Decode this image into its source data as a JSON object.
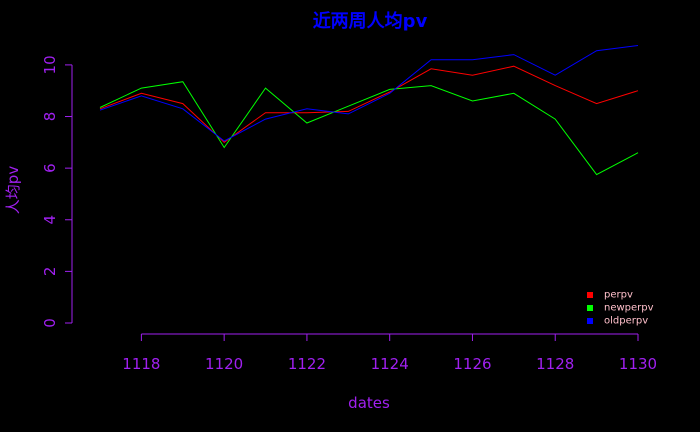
{
  "chart_data": {
    "type": "line",
    "title": "近两周人均pv",
    "xlabel": "dates",
    "ylabel": "人均pv",
    "x": [
      1117,
      1118,
      1119,
      1120,
      1121,
      1122,
      1123,
      1124,
      1125,
      1126,
      1127,
      1128,
      1129,
      1130
    ],
    "x_ticks": [
      1118,
      1120,
      1122,
      1124,
      1126,
      1128,
      1130
    ],
    "y_ticks": [
      0,
      2,
      4,
      6,
      8,
      10
    ],
    "xlim": [
      1117,
      1130
    ],
    "ylim": [
      0,
      10.5
    ],
    "grid": false,
    "legend_position": "bottom-right",
    "colors": {
      "background": "#000000",
      "title": "#0000ff",
      "axis": "#a020f0",
      "label": "#a020f0",
      "legend_text": "#ffc0cb"
    },
    "series": [
      {
        "name": "perpv",
        "color": "#ff0000",
        "values": [
          8.3,
          8.9,
          8.5,
          7.0,
          8.15,
          8.15,
          8.2,
          8.95,
          9.85,
          9.6,
          9.95,
          9.2,
          8.5,
          9.0
        ]
      },
      {
        "name": "newperpv",
        "color": "#00ff00",
        "values": [
          8.35,
          9.1,
          9.35,
          6.8,
          9.1,
          7.75,
          8.4,
          9.05,
          9.2,
          8.6,
          8.9,
          7.9,
          5.75,
          6.6
        ]
      },
      {
        "name": "oldperpv",
        "color": "#0000ff",
        "values": [
          8.25,
          8.8,
          8.3,
          7.05,
          7.9,
          8.3,
          8.1,
          8.9,
          10.2,
          10.2,
          10.4,
          9.6,
          10.55,
          10.75
        ]
      }
    ]
  }
}
